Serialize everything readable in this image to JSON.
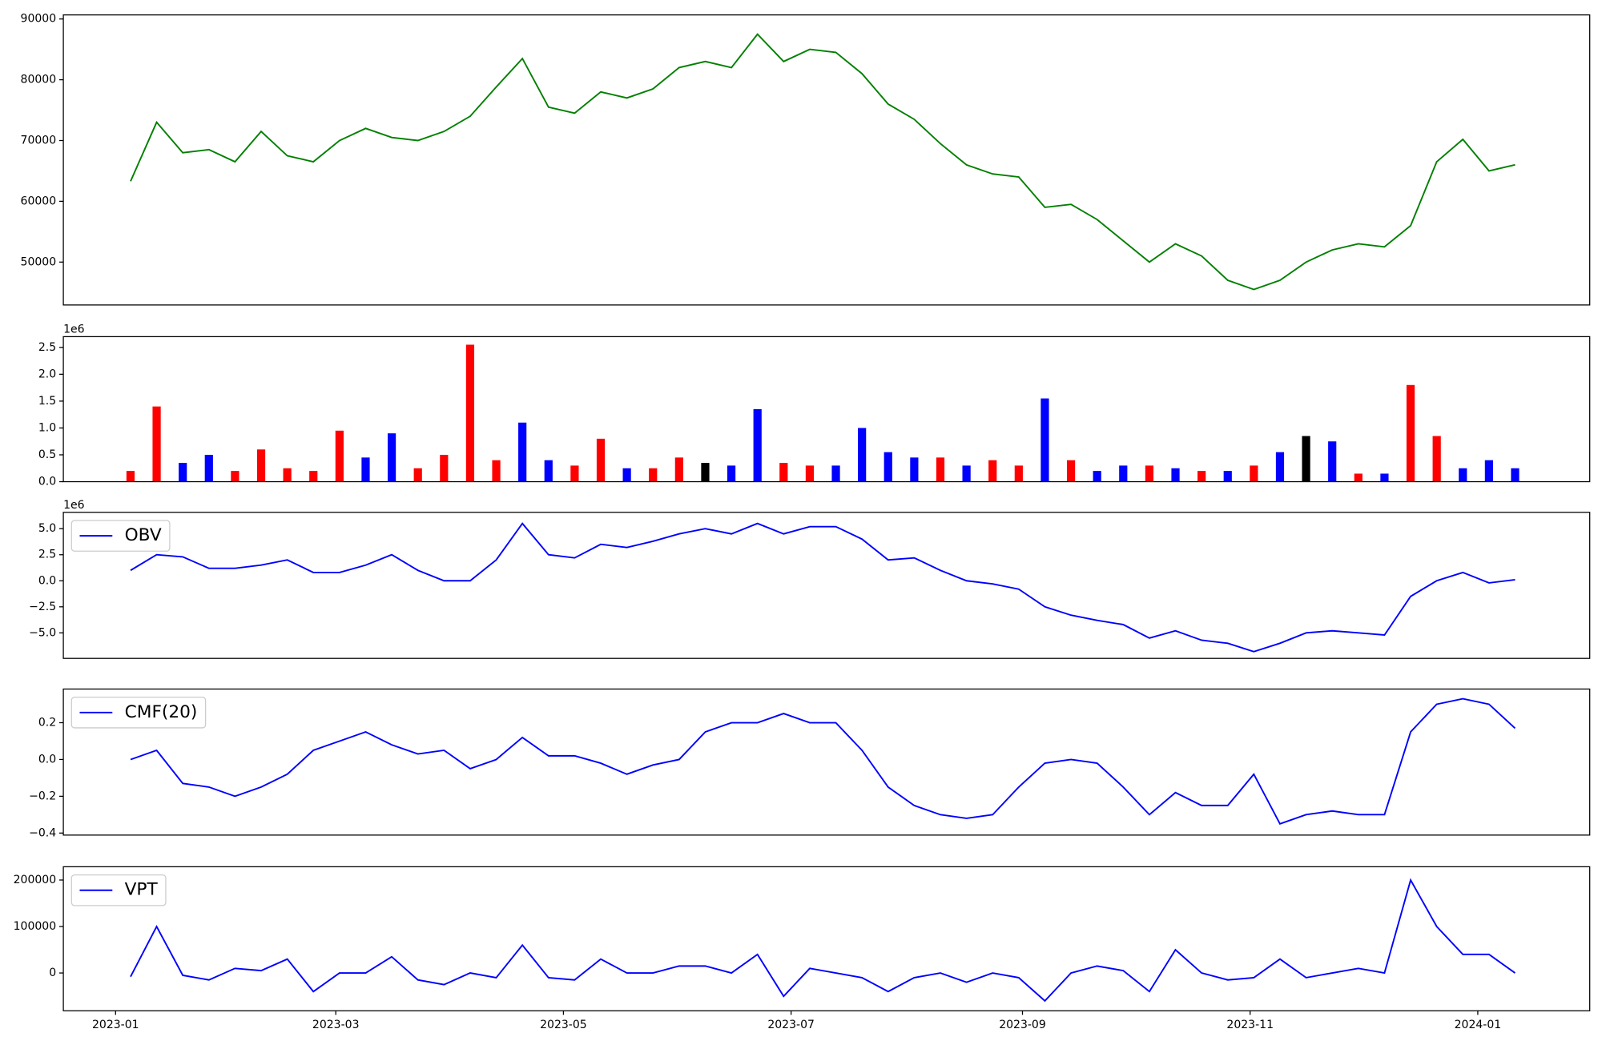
{
  "chart_data": [
    {
      "type": "line",
      "xlim": [
        -14,
        395
      ],
      "x": [
        4,
        11,
        18,
        25,
        32,
        39,
        46,
        53,
        60,
        67,
        74,
        81,
        88,
        95,
        102,
        109,
        116,
        123,
        130,
        137,
        144,
        151,
        158,
        165,
        172,
        179,
        186,
        193,
        200,
        207,
        214,
        221,
        228,
        235,
        242,
        249,
        256,
        263,
        270,
        277,
        284,
        291,
        298,
        305,
        312,
        319,
        326,
        333,
        340,
        347,
        354,
        361,
        368,
        375
      ],
      "ylim": [
        42940,
        90670
      ],
      "yticks": [
        50000,
        60000,
        70000,
        80000,
        90000
      ],
      "series": [
        {
          "color": "green",
          "values": [
            63300,
            73000,
            68000,
            68500,
            66500,
            71500,
            67500,
            66500,
            70000,
            72000,
            70500,
            70000,
            71500,
            74000,
            78800,
            83500,
            75500,
            74500,
            78000,
            77000,
            78500,
            82000,
            83000,
            82000,
            87500,
            83000,
            85000,
            84500,
            81000,
            76000,
            73500,
            69500,
            66000,
            64500,
            64000,
            59000,
            59500,
            57000,
            53500,
            50000,
            53000,
            51000,
            47000,
            45500,
            47000,
            50000,
            52000,
            53000,
            52500,
            56000,
            66500,
            70200,
            65000,
            66000
          ]
        }
      ]
    },
    {
      "type": "bar",
      "xlim": [
        -14,
        395
      ],
      "y_offset_label": "1e6",
      "x": [
        4,
        11,
        18,
        25,
        32,
        39,
        46,
        53,
        60,
        67,
        74,
        81,
        88,
        95,
        102,
        109,
        116,
        123,
        130,
        137,
        144,
        151,
        158,
        165,
        172,
        179,
        186,
        193,
        200,
        207,
        214,
        221,
        228,
        235,
        242,
        249,
        256,
        263,
        270,
        277,
        284,
        291,
        298,
        305,
        312,
        319,
        326,
        333,
        340,
        347,
        354,
        361,
        368,
        375
      ],
      "ylim": [
        0,
        2.7
      ],
      "yticks": [
        {
          "value": 0,
          "label": "0.0"
        },
        0.5,
        {
          "value": 1,
          "label": "1.0"
        },
        1.5,
        {
          "value": 2,
          "label": "2.0"
        },
        2.5
      ],
      "values": [
        0.2,
        1.4,
        0.35,
        0.5,
        0.2,
        0.6,
        0.25,
        0.2,
        0.95,
        0.45,
        0.9,
        0.25,
        0.5,
        2.55,
        0.4,
        1.1,
        0.4,
        0.3,
        0.8,
        0.25,
        0.25,
        0.45,
        0.35,
        0.3,
        1.35,
        0.35,
        0.3,
        0.3,
        1.0,
        0.55,
        0.45,
        0.45,
        0.3,
        0.4,
        0.3,
        1.55,
        0.4,
        0.2,
        0.3,
        0.3,
        0.25,
        0.2,
        0.2,
        0.3,
        0.55,
        0.85,
        0.75,
        0.15,
        0.15,
        1.8,
        0.85,
        0.25,
        0.4,
        0.25
      ],
      "colors": [
        "red",
        "red",
        "blue",
        "blue",
        "red",
        "red",
        "red",
        "red",
        "red",
        "blue",
        "blue",
        "red",
        "red",
        "red",
        "red",
        "blue",
        "blue",
        "red",
        "red",
        "blue",
        "red",
        "red",
        "black",
        "blue",
        "blue",
        "red",
        "red",
        "blue",
        "blue",
        "blue",
        "blue",
        "red",
        "blue",
        "red",
        "red",
        "blue",
        "red",
        "blue",
        "blue",
        "red",
        "blue",
        "red",
        "blue",
        "red",
        "blue",
        "black",
        "blue",
        "red",
        "blue",
        "red",
        "red",
        "blue",
        "blue",
        "blue"
      ]
    },
    {
      "type": "line",
      "xlim": [
        -14,
        395
      ],
      "y_offset_label": "1e6",
      "legend": "upper left",
      "x": [
        4,
        11,
        18,
        25,
        32,
        39,
        46,
        53,
        60,
        67,
        74,
        81,
        88,
        95,
        102,
        109,
        116,
        123,
        130,
        137,
        144,
        151,
        158,
        165,
        172,
        179,
        186,
        193,
        200,
        207,
        214,
        221,
        228,
        235,
        242,
        249,
        256,
        263,
        270,
        277,
        284,
        291,
        298,
        305,
        312,
        319,
        326,
        333,
        340,
        347,
        354,
        361,
        368,
        375
      ],
      "ylim": [
        -7.45,
        6.57
      ],
      "yticks": [
        {
          "value": -5,
          "label": "−5.0"
        },
        {
          "value": -2.5,
          "label": "−2.5"
        },
        {
          "value": 0,
          "label": "0.0"
        },
        2.5,
        {
          "value": 5,
          "label": "5.0"
        }
      ],
      "series": [
        {
          "name": "OBV",
          "color": "blue",
          "values": [
            1.0,
            2.5,
            2.3,
            1.2,
            1.2,
            1.5,
            2.0,
            0.8,
            0.8,
            1.5,
            2.5,
            1.0,
            0.0,
            0.0,
            2.0,
            5.5,
            2.5,
            2.2,
            3.5,
            3.2,
            3.8,
            4.5,
            5.0,
            4.5,
            5.5,
            4.5,
            5.2,
            5.2,
            4.0,
            2.0,
            2.2,
            1.0,
            0.0,
            -0.3,
            -0.8,
            -2.5,
            -3.3,
            -3.8,
            -4.2,
            -5.5,
            -4.8,
            -5.7,
            -6.0,
            -6.8,
            -6.0,
            -5.0,
            -4.8,
            -5.0,
            -5.2,
            -1.5,
            0.0,
            0.8,
            -0.2,
            0.1
          ]
        }
      ]
    },
    {
      "type": "line",
      "xlim": [
        -14,
        395
      ],
      "legend": "upper left",
      "x": [
        4,
        11,
        18,
        25,
        32,
        39,
        46,
        53,
        60,
        67,
        74,
        81,
        88,
        95,
        102,
        109,
        116,
        123,
        130,
        137,
        144,
        151,
        158,
        165,
        172,
        179,
        186,
        193,
        200,
        207,
        214,
        221,
        228,
        235,
        242,
        249,
        256,
        263,
        270,
        277,
        284,
        291,
        298,
        305,
        312,
        319,
        326,
        333,
        340,
        347,
        354,
        361,
        368,
        375
      ],
      "ylim": [
        -0.411,
        0.383
      ],
      "yticks": [
        {
          "value": -0.4,
          "label": "−0.4"
        },
        {
          "value": -0.2,
          "label": "−0.2"
        },
        {
          "value": 0,
          "label": "0.0"
        },
        0.2
      ],
      "series": [
        {
          "name": "CMF(20)",
          "color": "blue",
          "values": [
            0.0,
            0.05,
            -0.13,
            -0.15,
            -0.2,
            -0.15,
            -0.08,
            0.05,
            0.1,
            0.15,
            0.08,
            0.03,
            0.05,
            -0.05,
            0.0,
            0.12,
            0.02,
            0.02,
            -0.02,
            -0.08,
            -0.03,
            0.0,
            0.15,
            0.2,
            0.2,
            0.25,
            0.2,
            0.2,
            0.05,
            -0.15,
            -0.25,
            -0.3,
            -0.32,
            -0.3,
            -0.15,
            -0.02,
            0.0,
            -0.02,
            -0.15,
            -0.3,
            -0.18,
            -0.25,
            -0.25,
            -0.08,
            -0.35,
            -0.3,
            -0.28,
            -0.3,
            -0.3,
            0.15,
            0.3,
            0.33,
            0.3,
            0.17
          ]
        }
      ]
    },
    {
      "type": "line",
      "xlim": [
        -14,
        395
      ],
      "legend": "upper left",
      "x": [
        4,
        11,
        18,
        25,
        32,
        39,
        46,
        53,
        60,
        67,
        74,
        81,
        88,
        95,
        102,
        109,
        116,
        123,
        130,
        137,
        144,
        151,
        158,
        165,
        172,
        179,
        186,
        193,
        200,
        207,
        214,
        221,
        228,
        235,
        242,
        249,
        256,
        263,
        270,
        277,
        284,
        291,
        298,
        305,
        312,
        319,
        326,
        333,
        340,
        347,
        354,
        361,
        368,
        375
      ],
      "ylim": [
        -81300,
        228571
      ],
      "yticks": [
        0,
        100000,
        200000
      ],
      "xticks": [
        {
          "value": 0,
          "label": "2023-01"
        },
        {
          "value": 59,
          "label": "2023-03"
        },
        {
          "value": 120,
          "label": "2023-05"
        },
        {
          "value": 181,
          "label": "2023-07"
        },
        {
          "value": 243,
          "label": "2023-09"
        },
        {
          "value": 304,
          "label": "2023-11"
        },
        {
          "value": 365,
          "label": "2024-01"
        }
      ],
      "series": [
        {
          "name": "VPT",
          "color": "blue",
          "values": [
            -8000,
            100000,
            -5000,
            -15000,
            10000,
            5000,
            30000,
            -40000,
            0,
            0,
            35000,
            -15000,
            -25000,
            0,
            -10000,
            60000,
            -10000,
            -15000,
            30000,
            0,
            0,
            15000,
            15000,
            0,
            40000,
            -50000,
            10000,
            0,
            -10000,
            -40000,
            -10000,
            0,
            -20000,
            0,
            -10000,
            -60000,
            0,
            15000,
            5000,
            -40000,
            50000,
            0,
            -15000,
            -10000,
            30000,
            -10000,
            0,
            10000,
            0,
            200000,
            100000,
            40000,
            40000,
            0
          ]
        }
      ]
    }
  ]
}
